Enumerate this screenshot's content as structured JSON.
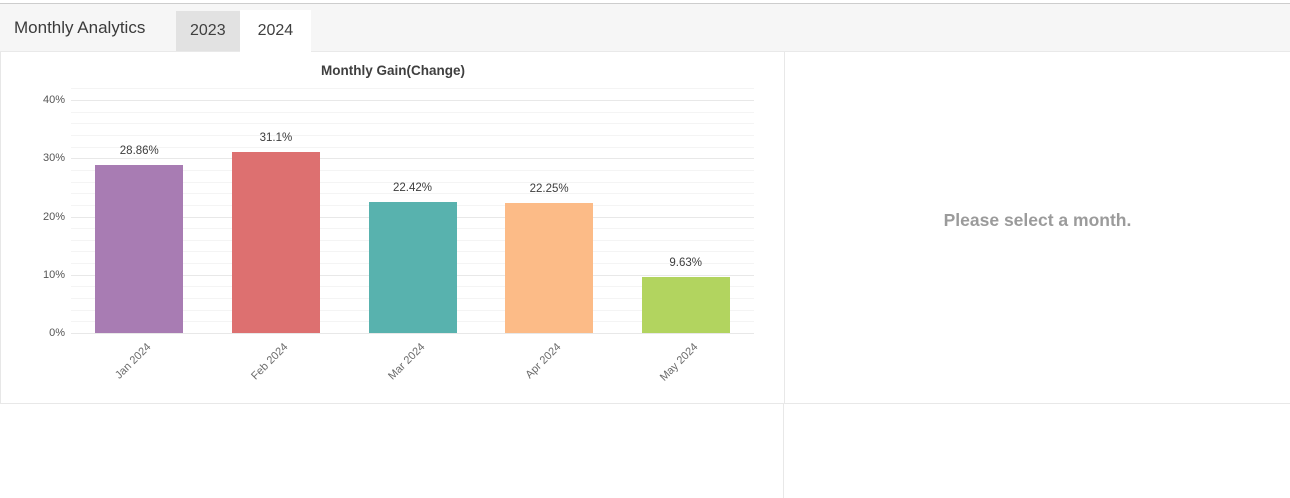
{
  "header": {
    "title": "Monthly Analytics",
    "tabs": [
      {
        "label": "2023",
        "active": false
      },
      {
        "label": "2024",
        "active": true
      }
    ]
  },
  "detail_panel": {
    "placeholder": "Please select a month."
  },
  "chart_data": {
    "type": "bar",
    "title": "Monthly Gain(Change)",
    "categories": [
      "Jan 2024",
      "Feb 2024",
      "Mar 2024",
      "Apr 2024",
      "May 2024"
    ],
    "values": [
      28.86,
      31.1,
      22.42,
      22.25,
      9.63
    ],
    "value_labels": [
      "28.86%",
      "31.1%",
      "22.42%",
      "22.25%",
      "9.63%"
    ],
    "bar_colors": [
      "#a87cb3",
      "#dd7070",
      "#58b2ae",
      "#fcbb87",
      "#b2d45f"
    ],
    "yticks": [
      0,
      10,
      20,
      30,
      40
    ],
    "ytick_labels": [
      "0%",
      "10%",
      "20%",
      "30%",
      "40%"
    ],
    "ylim": [
      0,
      42
    ],
    "xlabel": "",
    "ylabel": "",
    "grid": "horizontal majors every 10%, faint minors every 2%",
    "legend_position": "none",
    "x_tick_rotation_deg": 45
  },
  "colors": {
    "header_bg": "#f6f6f6",
    "tab_inactive_bg": "#e2e2e2",
    "tab_active_bg": "#ffffff",
    "divider": "#e8e8e8",
    "grid_major": "#e8e8e8",
    "grid_minor": "#f4f4f4",
    "placeholder_text": "#9b9b9b"
  }
}
